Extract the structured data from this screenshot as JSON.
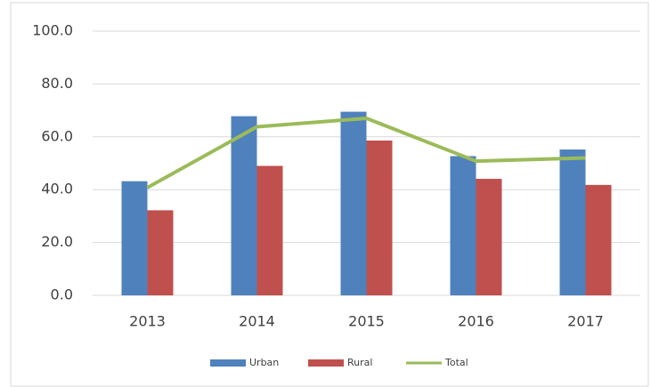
{
  "chart_data": {
    "type": "bar",
    "categories": [
      "2013",
      "2014",
      "2015",
      "2016",
      "2017"
    ],
    "series": [
      {
        "name": "Urban",
        "color": "#4f81bd",
        "values": [
          43.2,
          67.8,
          69.5,
          52.7,
          55.2
        ]
      },
      {
        "name": "Rural",
        "color": "#c0504d",
        "values": [
          32.2,
          49.0,
          58.6,
          44.1,
          41.8
        ]
      },
      {
        "name": "Total",
        "color": "#9bbb59",
        "type": "line",
        "values": [
          40.8,
          63.8,
          67.0,
          50.8,
          52.0
        ]
      }
    ],
    "ylim": [
      0,
      100
    ],
    "yticks": [
      {
        "value": 0,
        "label": "0.0"
      },
      {
        "value": 20,
        "label": "20.0"
      },
      {
        "value": 40,
        "label": "40.0"
      },
      {
        "value": 60,
        "label": "60.0"
      },
      {
        "value": 80,
        "label": "80.0"
      },
      {
        "value": 100,
        "label": "100.0"
      }
    ],
    "grid": true,
    "legend": "bottom"
  }
}
